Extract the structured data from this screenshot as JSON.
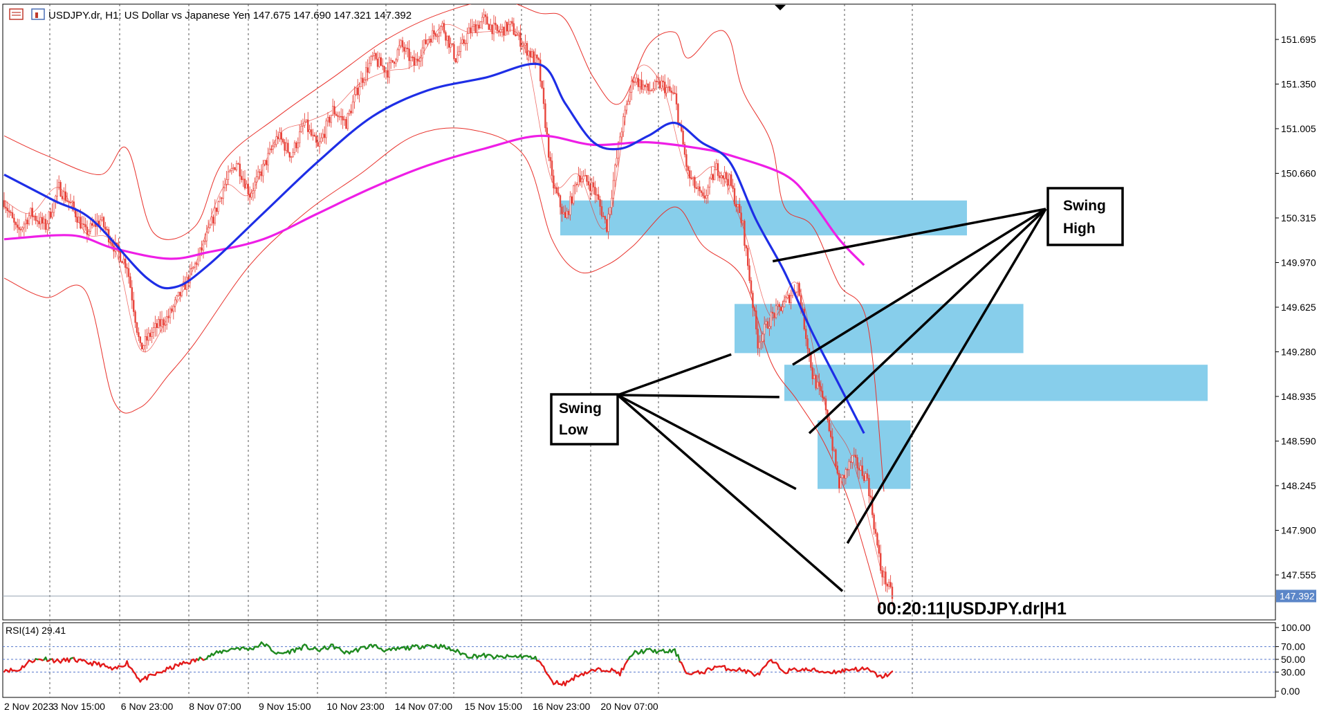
{
  "header": {
    "symbol_caption": "USDJPY.dr, H1:  US Dollar vs Japanese Yen  147.675 147.690 147.321 147.392"
  },
  "timer_label": "00:20:11|USDJPY.dr|H1",
  "colors": {
    "candle": "#e8453c",
    "bollinger": "#e8302a",
    "ma_fast": "#1e2ee6",
    "ma_slow": "#ee1ee6",
    "zone": "#87ceeb",
    "rsi_above": "#1f8a1f",
    "rsi_below": "#e31a1a",
    "grid": "#555555",
    "level_line": "#5577cc",
    "price_tag": "#5b86c8"
  },
  "chart_data": [
    {
      "type": "candlestick",
      "title": "USDJPY.dr, H1: US Dollar vs Japanese Yen",
      "ohlc_last": {
        "open": 147.675,
        "high": 147.69,
        "low": 147.321,
        "close": 147.392
      },
      "x_ticks": [
        "2 Nov 2023",
        "3 Nov 15:00",
        "6 Nov 23:00",
        "8 Nov 07:00",
        "9 Nov 15:00",
        "10 Nov 23:00",
        "14 Nov 07:00",
        "15 Nov 15:00",
        "16 Nov 23:00",
        "20 Nov 07:00"
      ],
      "y_ticks": [
        "151.695",
        "151.350",
        "151.005",
        "150.660",
        "150.315",
        "149.970",
        "149.625",
        "149.280",
        "148.935",
        "148.590",
        "148.245",
        "147.900",
        "147.555"
      ],
      "ylim": [
        147.2,
        152.0
      ],
      "current_price": "147.392",
      "price_path": [
        [
          0,
          150.45
        ],
        [
          8,
          150.2
        ],
        [
          16,
          150.35
        ],
        [
          25,
          150.25
        ],
        [
          33,
          150.55
        ],
        [
          41,
          150.4
        ],
        [
          49,
          150.2
        ],
        [
          58,
          150.3
        ],
        [
          66,
          150.1
        ],
        [
          74,
          149.95
        ],
        [
          82,
          149.3
        ],
        [
          90,
          149.45
        ],
        [
          99,
          149.55
        ],
        [
          107,
          149.75
        ],
        [
          115,
          149.95
        ],
        [
          123,
          150.2
        ],
        [
          132,
          150.55
        ],
        [
          140,
          150.75
        ],
        [
          148,
          150.5
        ],
        [
          156,
          150.7
        ],
        [
          165,
          150.95
        ],
        [
          173,
          150.8
        ],
        [
          181,
          151.05
        ],
        [
          189,
          150.85
        ],
        [
          198,
          151.15
        ],
        [
          206,
          151.05
        ],
        [
          214,
          151.35
        ],
        [
          222,
          151.55
        ],
        [
          231,
          151.45
        ],
        [
          239,
          151.65
        ],
        [
          247,
          151.5
        ],
        [
          255,
          151.7
        ],
        [
          264,
          151.8
        ],
        [
          272,
          151.55
        ],
        [
          280,
          151.75
        ],
        [
          289,
          151.85
        ],
        [
          297,
          151.75
        ],
        [
          305,
          151.8
        ],
        [
          313,
          151.65
        ],
        [
          322,
          151.5
        ],
        [
          330,
          150.6
        ],
        [
          338,
          150.3
        ],
        [
          346,
          150.65
        ],
        [
          355,
          150.55
        ],
        [
          363,
          150.25
        ],
        [
          371,
          150.95
        ],
        [
          379,
          151.4
        ],
        [
          388,
          151.3
        ],
        [
          396,
          151.35
        ],
        [
          404,
          151.25
        ],
        [
          412,
          150.65
        ],
        [
          421,
          150.45
        ],
        [
          429,
          150.7
        ],
        [
          437,
          150.6
        ],
        [
          445,
          150.25
        ],
        [
          454,
          149.35
        ],
        [
          462,
          149.55
        ],
        [
          470,
          149.65
        ],
        [
          478,
          149.8
        ],
        [
          487,
          149.1
        ],
        [
          495,
          148.85
        ],
        [
          503,
          148.25
        ],
        [
          511,
          148.45
        ],
        [
          520,
          148.3
        ],
        [
          528,
          147.6
        ],
        [
          535,
          147.39
        ]
      ],
      "moving_average_fast": [
        [
          0,
          150.65
        ],
        [
          30,
          150.45
        ],
        [
          53,
          150.3
        ],
        [
          86,
          149.85
        ],
        [
          103,
          149.78
        ],
        [
          123,
          149.95
        ],
        [
          156,
          150.35
        ],
        [
          189,
          150.75
        ],
        [
          222,
          151.1
        ],
        [
          255,
          151.3
        ],
        [
          290,
          151.4
        ],
        [
          323,
          151.5
        ],
        [
          338,
          151.2
        ],
        [
          355,
          150.9
        ],
        [
          371,
          150.85
        ],
        [
          388,
          150.95
        ],
        [
          404,
          151.05
        ],
        [
          420,
          150.9
        ],
        [
          437,
          150.75
        ],
        [
          453,
          150.3
        ],
        [
          470,
          149.9
        ],
        [
          486,
          149.45
        ],
        [
          502,
          149.05
        ],
        [
          518,
          148.65
        ]
      ],
      "moving_average_slow": [
        [
          0,
          150.15
        ],
        [
          41,
          150.18
        ],
        [
          66,
          150.08
        ],
        [
          99,
          150.0
        ],
        [
          123,
          150.05
        ],
        [
          156,
          150.15
        ],
        [
          189,
          150.35
        ],
        [
          222,
          150.55
        ],
        [
          255,
          150.72
        ],
        [
          289,
          150.85
        ],
        [
          323,
          150.95
        ],
        [
          355,
          150.88
        ],
        [
          388,
          150.9
        ],
        [
          420,
          150.85
        ],
        [
          437,
          150.8
        ],
        [
          470,
          150.65
        ],
        [
          486,
          150.45
        ],
        [
          503,
          150.15
        ],
        [
          518,
          149.95
        ]
      ],
      "bollinger_upper": [
        [
          0,
          150.95
        ],
        [
          25,
          150.8
        ],
        [
          58,
          150.65
        ],
        [
          74,
          150.85
        ],
        [
          90,
          150.2
        ],
        [
          115,
          150.25
        ],
        [
          132,
          150.75
        ],
        [
          165,
          151.1
        ],
        [
          198,
          151.4
        ],
        [
          231,
          151.7
        ],
        [
          264,
          151.9
        ],
        [
          297,
          152.0
        ],
        [
          322,
          151.9
        ],
        [
          338,
          151.85
        ],
        [
          355,
          151.4
        ],
        [
          371,
          151.2
        ],
        [
          388,
          151.65
        ],
        [
          404,
          151.75
        ],
        [
          412,
          151.55
        ],
        [
          428,
          151.75
        ],
        [
          437,
          151.7
        ],
        [
          445,
          151.3
        ],
        [
          462,
          150.9
        ],
        [
          470,
          150.4
        ],
        [
          487,
          150.25
        ],
        [
          503,
          149.8
        ],
        [
          520,
          149.5
        ],
        [
          530,
          148.2
        ]
      ],
      "bollinger_lower": [
        [
          0,
          149.85
        ],
        [
          25,
          149.7
        ],
        [
          49,
          149.75
        ],
        [
          66,
          148.9
        ],
        [
          82,
          148.85
        ],
        [
          99,
          149.1
        ],
        [
          115,
          149.35
        ],
        [
          148,
          149.95
        ],
        [
          181,
          150.35
        ],
        [
          214,
          150.65
        ],
        [
          247,
          150.95
        ],
        [
          280,
          151.0
        ],
        [
          313,
          150.8
        ],
        [
          330,
          150.15
        ],
        [
          346,
          149.9
        ],
        [
          363,
          149.95
        ],
        [
          379,
          150.1
        ],
        [
          404,
          150.4
        ],
        [
          421,
          150.1
        ],
        [
          445,
          149.85
        ],
        [
          462,
          149.2
        ],
        [
          478,
          148.9
        ],
        [
          495,
          148.55
        ],
        [
          511,
          148.05
        ],
        [
          528,
          147.3
        ]
      ],
      "zones": [
        {
          "x_start": 335,
          "x_end": 580,
          "y_low": 150.18,
          "y_high": 150.45
        },
        {
          "x_start": 440,
          "x_end": 614,
          "y_low": 149.27,
          "y_high": 149.65
        },
        {
          "x_start": 470,
          "x_end": 725,
          "y_low": 148.9,
          "y_high": 149.18
        },
        {
          "x_start": 490,
          "x_end": 546,
          "y_low": 148.22,
          "y_high": 148.75
        }
      ],
      "annotations": {
        "swing_high_label": [
          "Swing",
          "High"
        ],
        "swing_low_label": [
          "Swing",
          "Low"
        ],
        "swing_high_points": [
          [
            463,
            149.98
          ],
          [
            485,
            148.65
          ],
          [
            508,
            147.8
          ],
          [
            475,
            149.18
          ]
        ],
        "swing_low_points": [
          [
            438,
            149.26
          ],
          [
            467,
            148.93
          ],
          [
            477,
            148.22
          ],
          [
            505,
            147.43
          ]
        ]
      }
    },
    {
      "type": "line",
      "title": "RSI(14) 29.41",
      "indicator": "RSI(14)",
      "last_value": "29.41",
      "y_ticks": [
        "100.00",
        "70.00",
        "50.00",
        "30.00",
        "0.00"
      ],
      "ylim": [
        0,
        100
      ],
      "levels": [
        70,
        50,
        30
      ],
      "x": [
        0,
        8,
        16,
        25,
        33,
        41,
        49,
        58,
        66,
        74,
        82,
        90,
        99,
        107,
        115,
        123,
        132,
        140,
        148,
        156,
        165,
        173,
        181,
        189,
        198,
        206,
        214,
        222,
        231,
        239,
        247,
        255,
        264,
        272,
        280,
        289,
        297,
        305,
        313,
        322,
        330,
        338,
        346,
        355,
        363,
        371,
        379,
        388,
        396,
        404,
        412,
        421,
        429,
        437,
        445,
        454,
        462,
        470,
        478,
        487,
        495,
        503,
        511,
        520,
        528,
        535
      ],
      "values": [
        34,
        32,
        48,
        51,
        47,
        50,
        45,
        42,
        33,
        45,
        17,
        25,
        35,
        43,
        48,
        55,
        63,
        68,
        66,
        75,
        58,
        63,
        70,
        64,
        71,
        60,
        66,
        72,
        63,
        67,
        69,
        72,
        70,
        63,
        55,
        56,
        53,
        54,
        55,
        50,
        14,
        12,
        26,
        32,
        35,
        28,
        60,
        64,
        62,
        63,
        26,
        30,
        39,
        35,
        33,
        25,
        48,
        31,
        34,
        33,
        30,
        31,
        35,
        34,
        22,
        29
      ]
    }
  ]
}
